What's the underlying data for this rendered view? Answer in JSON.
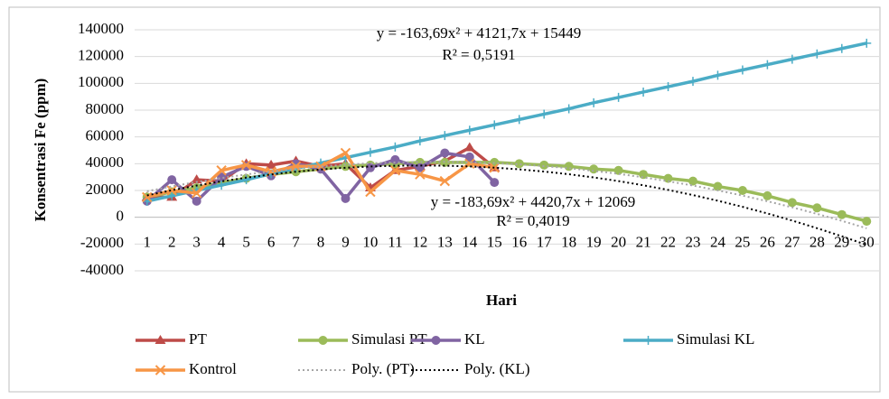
{
  "chart_data": {
    "type": "line",
    "y_label": "Konsentrasi Fe (ppm)",
    "x_label": "Hari",
    "categories": [
      "1",
      "2",
      "3",
      "4",
      "5",
      "6",
      "7",
      "8",
      "9",
      "10",
      "11",
      "12",
      "13",
      "14",
      "15",
      "16",
      "17",
      "18",
      "19",
      "20",
      "21",
      "22",
      "23",
      "24",
      "25",
      "26",
      "27",
      "28",
      "29",
      "30"
    ],
    "ylim": [
      -40000,
      140000
    ],
    "yticks": [
      -40000,
      -20000,
      0,
      20000,
      40000,
      60000,
      80000,
      100000,
      120000,
      140000
    ],
    "grid": true,
    "series": [
      {
        "name": "PT",
        "color": "#be4b48",
        "marker": "triangle",
        "style": "solid",
        "values": [
          15000,
          15000,
          28000,
          27000,
          40000,
          39000,
          42000,
          38000,
          40000,
          22000,
          35000,
          38000,
          42000,
          52000,
          37000,
          null,
          null,
          null,
          null,
          null,
          null,
          null,
          null,
          null,
          null,
          null,
          null,
          null,
          null,
          null
        ]
      },
      {
        "name": "Simulasi PT",
        "color": "#9bbb59",
        "marker": "circle",
        "style": "solid",
        "values": [
          15000,
          19000,
          22000,
          26000,
          29000,
          32000,
          34000,
          36000,
          38000,
          39000,
          40000,
          41000,
          41000,
          41000,
          41000,
          40000,
          39000,
          38000,
          36000,
          35000,
          32000,
          29000,
          27000,
          23000,
          20000,
          16000,
          11000,
          7000,
          2000,
          -3000
        ]
      },
      {
        "name": "KL",
        "color": "#8064a2",
        "marker": "circle",
        "style": "solid",
        "values": [
          12000,
          28000,
          12000,
          30000,
          38000,
          31000,
          40000,
          36000,
          14000,
          37000,
          43000,
          37000,
          48000,
          45000,
          26000,
          null,
          null,
          null,
          null,
          null,
          null,
          null,
          null,
          null,
          null,
          null,
          null,
          null,
          null,
          null
        ]
      },
      {
        "name": "Simulasi KL",
        "color": "#4bacc6",
        "marker": "plus",
        "style": "solid",
        "values": [
          12000,
          16000,
          20000,
          24000,
          28000,
          32500,
          36500,
          40500,
          44500,
          48500,
          52500,
          57000,
          61000,
          65000,
          69000,
          73000,
          77000,
          81000,
          85500,
          89500,
          93500,
          97500,
          101500,
          106000,
          110000,
          114000,
          118000,
          122000,
          126000,
          130000
        ]
      },
      {
        "name": "Kontrol",
        "color": "#f79646",
        "marker": "x",
        "style": "solid",
        "values": [
          15000,
          20000,
          18000,
          35000,
          39000,
          34000,
          38000,
          38000,
          48000,
          19000,
          35000,
          32000,
          27000,
          40000,
          37000,
          null,
          null,
          null,
          null,
          null,
          null,
          null,
          null,
          null,
          null,
          null,
          null,
          null,
          null,
          null
        ]
      },
      {
        "name": "Poly. (PT)",
        "color": "#a6a6a6",
        "marker": "none",
        "style": "dotted",
        "values": [
          19407,
          23038,
          26341,
          29317,
          31965,
          34286,
          36280,
          37946,
          39285,
          40297,
          40981,
          41338,
          41368,
          41070,
          40445,
          39492,
          38212,
          36604,
          34669,
          32407,
          29817,
          26900,
          23656,
          20084,
          16185,
          11959,
          7405,
          2524,
          -2685,
          -8221
        ]
      },
      {
        "name": "Poly. (KL)",
        "color": "#000000",
        "marker": "none",
        "style": "dotted",
        "values": [
          16306,
          20176,
          23678,
          26813,
          29580,
          31980,
          34013,
          35679,
          36976,
          37907,
          38470,
          38666,
          38495,
          37956,
          37049,
          35776,
          34134,
          32126,
          29750,
          27007,
          23896,
          20418,
          16573,
          12360,
          7780,
          2833,
          -2482,
          -8164,
          -14214,
          -20631
        ]
      }
    ],
    "annotations": [
      "y = -163,69x² + 4121,7x + 15449",
      "R² = 0,5191",
      "y = -183,69x² + 4420,7x + 12069",
      "R² = 0,4019"
    ]
  }
}
